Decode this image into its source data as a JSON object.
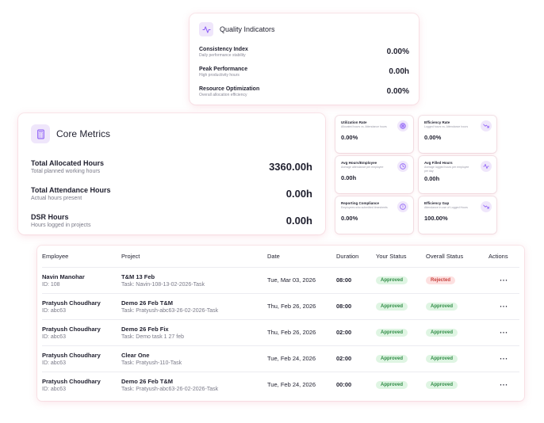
{
  "quality": {
    "title": "Quality Indicators",
    "icon": "pulse-icon",
    "items": [
      {
        "name": "Consistency Index",
        "desc": "Daily performance stability",
        "value": "0.00%"
      },
      {
        "name": "Peak Performance",
        "desc": "High productivity hours",
        "value": "0.00h"
      },
      {
        "name": "Resource Optimization",
        "desc": "Overall allocation efficiency",
        "value": "0.00%"
      }
    ]
  },
  "core": {
    "title": "Core Metrics",
    "icon": "calculator-icon",
    "items": [
      {
        "name": "Total Allocated Hours",
        "desc": "Total planned working hours",
        "value": "3360.00h"
      },
      {
        "name": "Total Attendance Hours",
        "desc": "Actual hours present",
        "value": "0.00h"
      },
      {
        "name": "DSR Hours",
        "desc": "Hours logged in projects",
        "value": "0.00h"
      }
    ]
  },
  "mini": [
    {
      "title": "Utilization Rate",
      "desc": "Allocated hours vs. Attendance hours",
      "value": "0.00%",
      "icon": "target-icon"
    },
    {
      "title": "Efficiency Rate",
      "desc": "Logged hours vs. Attendance hours",
      "value": "0.00%",
      "icon": "trend-down-icon"
    },
    {
      "title": "Avg Hours/Employee",
      "desc": "Average attendance per employee",
      "value": "0.00h",
      "icon": "clock-icon"
    },
    {
      "title": "Avg Filled Hours",
      "desc": "Average logged hours per employee per day",
      "value": "0.00h",
      "icon": "pulse-icon"
    },
    {
      "title": "Reporting Compliance",
      "desc": "Employees who submitted timesheets",
      "value": "0.00%",
      "icon": "alert-circle-icon"
    },
    {
      "title": "Efficiency Gap",
      "desc": "Attendance in use of Logged Hours",
      "value": "100.00%",
      "icon": "trend-down-icon"
    }
  ],
  "table": {
    "headers": [
      "Employee",
      "Project",
      "Date",
      "Duration",
      "Your Status",
      "Overall Status",
      "Actions"
    ],
    "rows": [
      {
        "name": "Navin Manohar",
        "id": "ID: 108",
        "project": "T&M 13 Feb",
        "task": "Task: Navin-108-13-02-2026-Task",
        "date": "Tue, Mar 03, 2026",
        "duration": "08:00",
        "your_status": "Approved",
        "overall_status": "Rejected"
      },
      {
        "name": "Pratyush Choudhary",
        "id": "ID: abc63",
        "project": "Demo 26 Feb T&M",
        "task": "Task: Pratyush-abc63-26-02-2026-Task",
        "date": "Thu, Feb 26, 2026",
        "duration": "08:00",
        "your_status": "Approved",
        "overall_status": "Approved"
      },
      {
        "name": "Pratyush Choudhary",
        "id": "ID: abc63",
        "project": "Demo 26 Feb Fix",
        "task": "Task: Demo task 1 27 feb",
        "date": "Thu, Feb 26, 2026",
        "duration": "02:00",
        "your_status": "Approved",
        "overall_status": "Approved"
      },
      {
        "name": "Pratyush Choudhary",
        "id": "ID: abc63",
        "project": "Clear One",
        "task": "Task: Pratyush-110-Task",
        "date": "Tue, Feb 24, 2026",
        "duration": "02:00",
        "your_status": "Approved",
        "overall_status": "Approved"
      },
      {
        "name": "Pratyush Choudhary",
        "id": "ID: abc63",
        "project": "Demo 26 Feb T&M",
        "task": "Task: Pratyush-abc63-26-02-2026-Task",
        "date": "Tue, Feb 24, 2026",
        "duration": "00:00",
        "your_status": "Approved",
        "overall_status": "Approved"
      }
    ],
    "actions_label": "···"
  },
  "colors": {
    "accent": "#8b5cf6",
    "approved": "#2e8b44",
    "rejected": "#c8423e"
  }
}
